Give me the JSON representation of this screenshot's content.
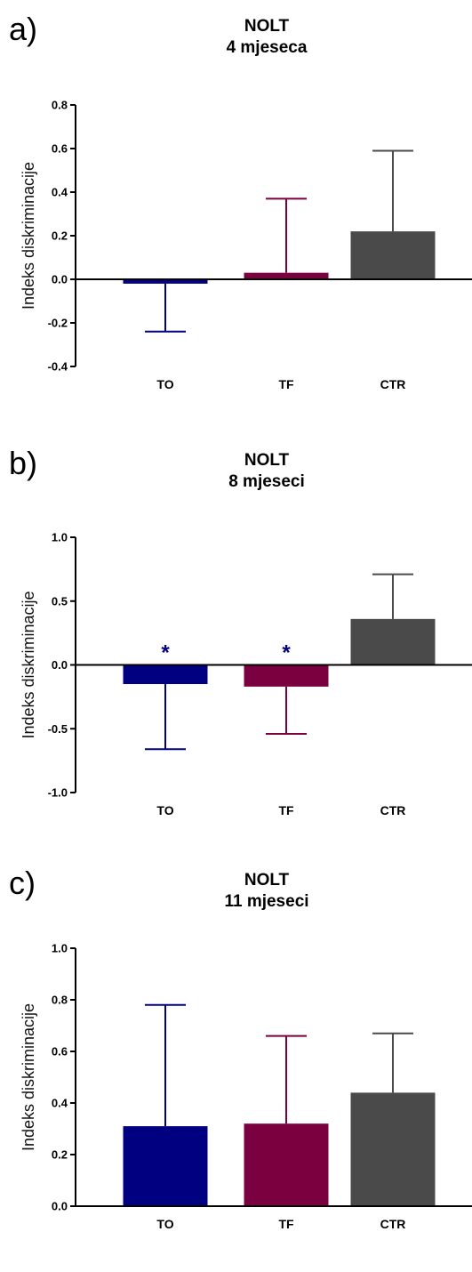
{
  "chart_data": [
    {
      "panel_label": "a)",
      "type": "bar",
      "title": "NOLT",
      "subtitle": "4 mjeseca",
      "ylabel": "Indeks diskriminacije",
      "xlabel": "",
      "ylim": [
        -0.4,
        0.8
      ],
      "yticks": [
        -0.4,
        -0.2,
        0.0,
        0.2,
        0.4,
        0.6,
        0.8
      ],
      "ytick_labels": [
        "-0.4",
        "-0.2",
        "0.0",
        "0.2",
        "0.4",
        "0.6",
        "0.8"
      ],
      "categories": [
        "TO",
        "TF",
        "CTR"
      ],
      "values": [
        -0.02,
        0.03,
        0.22
      ],
      "errors": [
        0.22,
        0.34,
        0.37
      ],
      "colors": [
        "#000080",
        "#7a0040",
        "#4a4a4a"
      ],
      "annotations": [
        "",
        "",
        ""
      ],
      "grid": false
    },
    {
      "panel_label": "b)",
      "type": "bar",
      "title": "NOLT",
      "subtitle": "8 mjeseci",
      "ylabel": "Indeks diskriminacije",
      "xlabel": "",
      "ylim": [
        -1.0,
        1.0
      ],
      "yticks": [
        -1.0,
        -0.5,
        0.0,
        0.5,
        1.0
      ],
      "ytick_labels": [
        "-1.0",
        "-0.5",
        "0.0",
        "0.5",
        "1.0"
      ],
      "categories": [
        "TO",
        "TF",
        "CTR"
      ],
      "values": [
        -0.15,
        -0.17,
        0.36
      ],
      "errors": [
        0.51,
        0.37,
        0.35
      ],
      "colors": [
        "#000080",
        "#7a0040",
        "#4a4a4a"
      ],
      "annotations": [
        "*",
        "*",
        ""
      ],
      "grid": false
    },
    {
      "panel_label": "c)",
      "type": "bar",
      "title": "NOLT",
      "subtitle": "11 mjeseci",
      "ylabel": "Indeks diskriminacije",
      "xlabel": "",
      "ylim": [
        0.0,
        1.0
      ],
      "yticks": [
        0.0,
        0.2,
        0.4,
        0.6,
        0.8,
        1.0
      ],
      "ytick_labels": [
        "0.0",
        "0.2",
        "0.4",
        "0.6",
        "0.8",
        "1.0"
      ],
      "categories": [
        "TO",
        "TF",
        "CTR"
      ],
      "values": [
        0.31,
        0.32,
        0.44
      ],
      "errors": [
        0.47,
        0.34,
        0.23
      ],
      "colors": [
        "#000080",
        "#7a0040",
        "#4a4a4a"
      ],
      "annotations": [
        "",
        "",
        ""
      ],
      "grid": false
    }
  ]
}
